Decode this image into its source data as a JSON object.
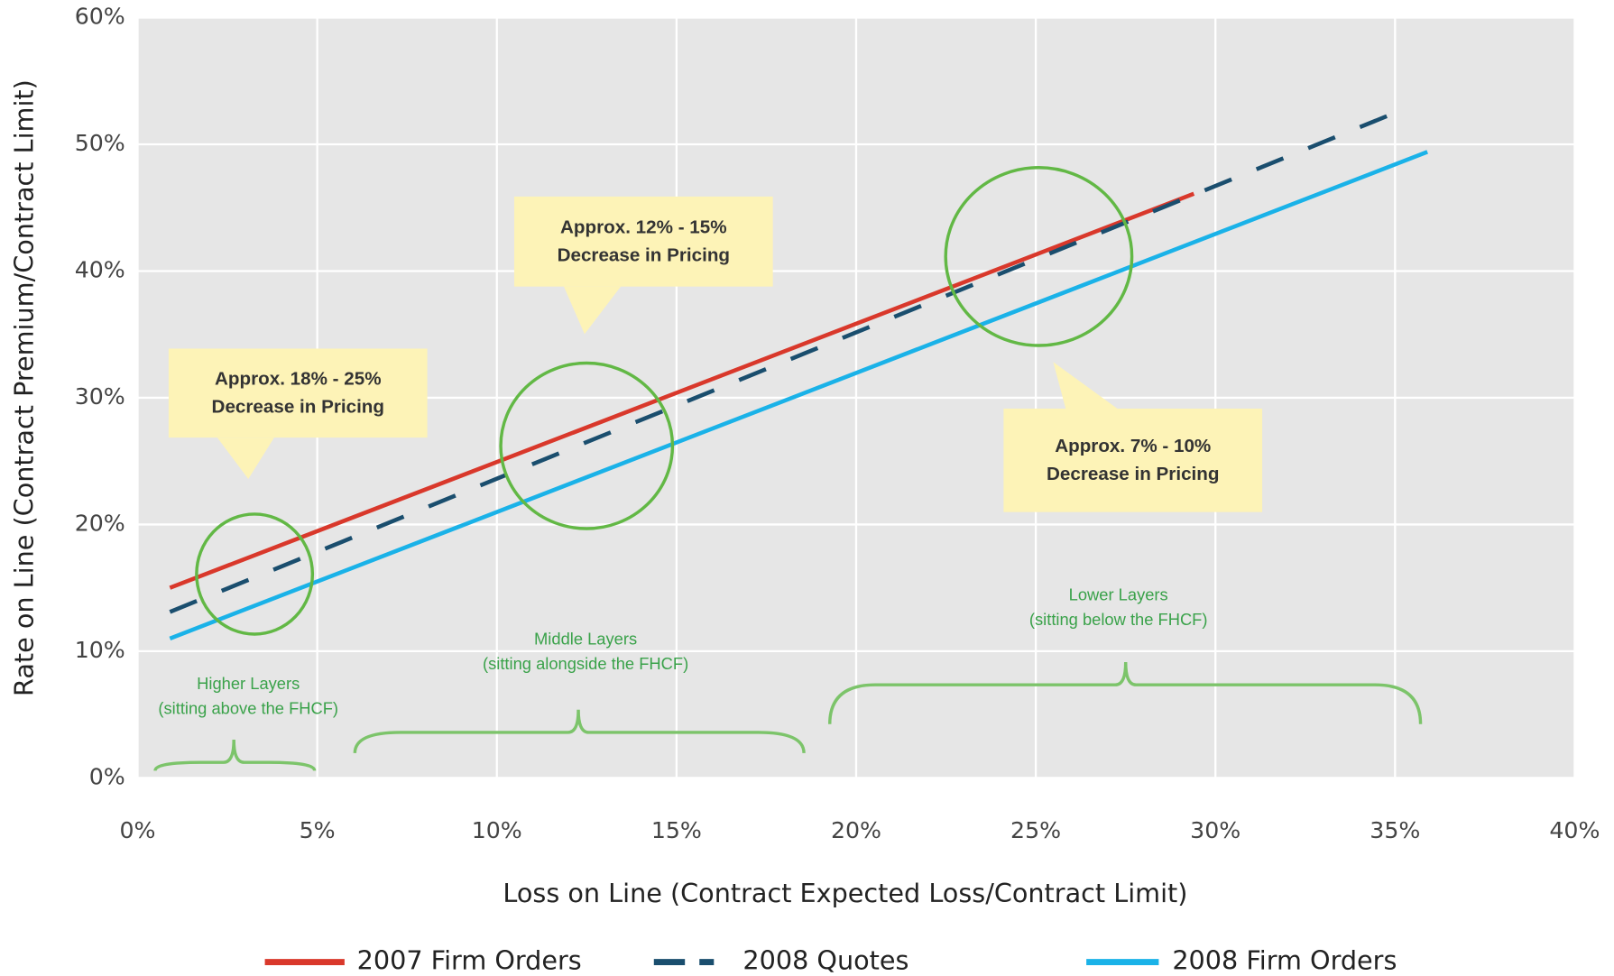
{
  "chart_data": {
    "type": "line",
    "x_label": "Loss on Line (Contract Expected Loss/Contract Limit)",
    "y_label": "Rate on Line (Contract Premium/Contract Limit)",
    "series": [
      {
        "name": "2007 Firm Orders",
        "color": "#d9382b",
        "dash": false,
        "x": [
          0.9,
          29.4
        ],
        "values": [
          15.0,
          46.1
        ]
      },
      {
        "name": "2008 Quotes",
        "color": "#1a4e6e",
        "dash": true,
        "x": [
          0.9,
          35.1
        ],
        "values": [
          13.1,
          52.6
        ]
      },
      {
        "name": "2008 Firm Orders",
        "color": "#1ab2e8",
        "dash": false,
        "x": [
          0.9,
          35.9
        ],
        "values": [
          11.0,
          49.4
        ]
      }
    ],
    "xlim": [
      0,
      40
    ],
    "xticks": [
      {
        "value": 0,
        "label": "0%"
      },
      {
        "value": 5,
        "label": "5%"
      },
      {
        "value": 10,
        "label": "10%"
      },
      {
        "value": 15,
        "label": "15%"
      },
      {
        "value": 20,
        "label": "20%"
      },
      {
        "value": 25,
        "label": "25%"
      },
      {
        "value": 30,
        "label": "30%"
      },
      {
        "value": 35,
        "label": "35%"
      },
      {
        "value": 40,
        "label": "40%"
      }
    ],
    "ylim": [
      0,
      60
    ],
    "yticks": [
      {
        "value": 0,
        "label": "0%"
      },
      {
        "value": 10,
        "label": "10%"
      },
      {
        "value": 20,
        "label": "20%"
      },
      {
        "value": 30,
        "label": "30%"
      },
      {
        "value": 40,
        "label": "40%"
      },
      {
        "value": 50,
        "label": "50%"
      },
      {
        "value": 60,
        "label": "60%"
      }
    ],
    "grid": true,
    "legend": "bottom",
    "annotations": [
      [
        "Approx. 18% - 25%",
        "Decrease in Pricing"
      ],
      [
        "Approx. 12% - 15%",
        "Decrease in Pricing"
      ],
      [
        "Approx. 7% - 10%",
        "Decrease in Pricing"
      ]
    ],
    "layer_labels": [
      [
        "Higher Layers",
        "(sitting above the FHCF)"
      ],
      [
        "Middle Layers",
        "(sitting alongside the FHCF)"
      ],
      [
        "Lower Layers",
        "(sitting below the FHCF)"
      ]
    ]
  }
}
